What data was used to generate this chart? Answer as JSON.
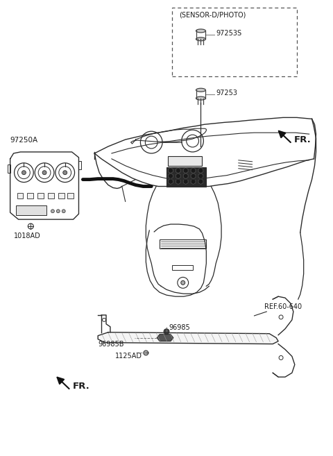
{
  "bg_color": "#ffffff",
  "line_color": "#2a2a2a",
  "text_color": "#1a1a1a",
  "gray_color": "#777777",
  "labels": {
    "sensor_box": "(SENSOR-D/PHOTO)",
    "97253S": "97253S",
    "97253": "97253",
    "97250A": "97250A",
    "1018AD": "1018AD",
    "FR_top": "FR.",
    "96985B": "96985B",
    "96985": "96985",
    "1125AD": "1125AD",
    "REF60640": "REF.60-640",
    "FR_bot": "FR."
  },
  "font_size_label": 7.0,
  "font_size_fr": 9.5
}
